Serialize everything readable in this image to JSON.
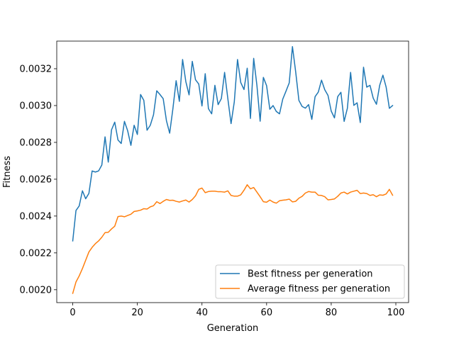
{
  "chart_data": {
    "type": "line",
    "title": "",
    "xlabel": "Generation",
    "ylabel": "Fitness",
    "xlim": [
      -4.95,
      103.95
    ],
    "ylim": [
      0.00193,
      0.00335
    ],
    "xticks": [
      0,
      20,
      40,
      60,
      80,
      100
    ],
    "yticks": [
      0.002,
      0.0022,
      0.0024,
      0.0026,
      0.0028,
      0.003,
      0.0032
    ],
    "ytick_labels": [
      "0.0020",
      "0.0022",
      "0.0024",
      "0.0026",
      "0.0028",
      "0.0030",
      "0.0032"
    ],
    "grid": false,
    "legend_position": "bottom-right",
    "x": [
      0,
      1,
      2,
      3,
      4,
      5,
      6,
      7,
      8,
      9,
      10,
      11,
      12,
      13,
      14,
      15,
      16,
      17,
      18,
      19,
      20,
      21,
      22,
      23,
      24,
      25,
      26,
      27,
      28,
      29,
      30,
      31,
      32,
      33,
      34,
      35,
      36,
      37,
      38,
      39,
      40,
      41,
      42,
      43,
      44,
      45,
      46,
      47,
      48,
      49,
      50,
      51,
      52,
      53,
      54,
      55,
      56,
      57,
      58,
      59,
      60,
      61,
      62,
      63,
      64,
      65,
      66,
      67,
      68,
      69,
      70,
      71,
      72,
      73,
      74,
      75,
      76,
      77,
      78,
      79,
      80,
      81,
      82,
      83,
      84,
      85,
      86,
      87,
      88,
      89,
      90,
      91,
      92,
      93,
      94,
      95,
      96,
      97,
      98,
      99
    ],
    "series": [
      {
        "name": "Best fitness per generation",
        "color": "#1f77b4",
        "values": [
          0.002265,
          0.00243,
          0.002455,
          0.002537,
          0.002494,
          0.002523,
          0.002645,
          0.002639,
          0.002645,
          0.002677,
          0.00283,
          0.002693,
          0.002868,
          0.00291,
          0.002813,
          0.002794,
          0.002914,
          0.002863,
          0.002784,
          0.002893,
          0.002843,
          0.00306,
          0.003028,
          0.002866,
          0.002893,
          0.00295,
          0.00308,
          0.00306,
          0.003037,
          0.002918,
          0.00285,
          0.002983,
          0.003135,
          0.003023,
          0.00325,
          0.00313,
          0.003058,
          0.00324,
          0.00314,
          0.003117,
          0.002998,
          0.003173,
          0.002983,
          0.002955,
          0.00311,
          0.003005,
          0.003038,
          0.00318,
          0.003038,
          0.002902,
          0.00302,
          0.00325,
          0.003125,
          0.003087,
          0.003203,
          0.00293,
          0.003256,
          0.00311,
          0.002915,
          0.003153,
          0.003108,
          0.00298,
          0.003,
          0.002968,
          0.002955,
          0.003035,
          0.003078,
          0.003123,
          0.00332,
          0.003183,
          0.003028,
          0.002995,
          0.002986,
          0.003005,
          0.002925,
          0.003048,
          0.003073,
          0.003138,
          0.003086,
          0.003055,
          0.00297,
          0.002933,
          0.003048,
          0.003072,
          0.002914,
          0.002985,
          0.00318,
          0.003001,
          0.003015,
          0.002908,
          0.003208,
          0.0031,
          0.00311,
          0.00304,
          0.003007,
          0.00311,
          0.003165,
          0.0031,
          0.002985,
          0.003
        ]
      },
      {
        "name": "Average fitness per generation",
        "color": "#ff7f0e",
        "values": [
          0.00198,
          0.002042,
          0.002075,
          0.002115,
          0.00216,
          0.002205,
          0.00223,
          0.00225,
          0.002265,
          0.002285,
          0.00231,
          0.002312,
          0.00233,
          0.002345,
          0.002397,
          0.0024,
          0.002396,
          0.002403,
          0.00241,
          0.002425,
          0.002428,
          0.002432,
          0.00244,
          0.002438,
          0.00245,
          0.002456,
          0.002478,
          0.002468,
          0.00248,
          0.00249,
          0.002485,
          0.002486,
          0.00248,
          0.002476,
          0.002482,
          0.002487,
          0.002476,
          0.00249,
          0.00251,
          0.002545,
          0.002552,
          0.002527,
          0.002533,
          0.002535,
          0.002535,
          0.002532,
          0.002532,
          0.00253,
          0.002537,
          0.002512,
          0.002508,
          0.002508,
          0.002515,
          0.00254,
          0.00257,
          0.002548,
          0.002555,
          0.00253,
          0.002505,
          0.002478,
          0.002475,
          0.002487,
          0.002476,
          0.00247,
          0.002483,
          0.002486,
          0.002488,
          0.002492,
          0.002477,
          0.00248,
          0.002497,
          0.002507,
          0.002525,
          0.002533,
          0.00253,
          0.00253,
          0.002513,
          0.002512,
          0.002505,
          0.002488,
          0.00249,
          0.002493,
          0.002507,
          0.002525,
          0.00253,
          0.00252,
          0.00253,
          0.002535,
          0.00254,
          0.002522,
          0.002525,
          0.002522,
          0.002512,
          0.002516,
          0.002505,
          0.002515,
          0.002513,
          0.00252,
          0.002545,
          0.002513
        ]
      }
    ]
  }
}
